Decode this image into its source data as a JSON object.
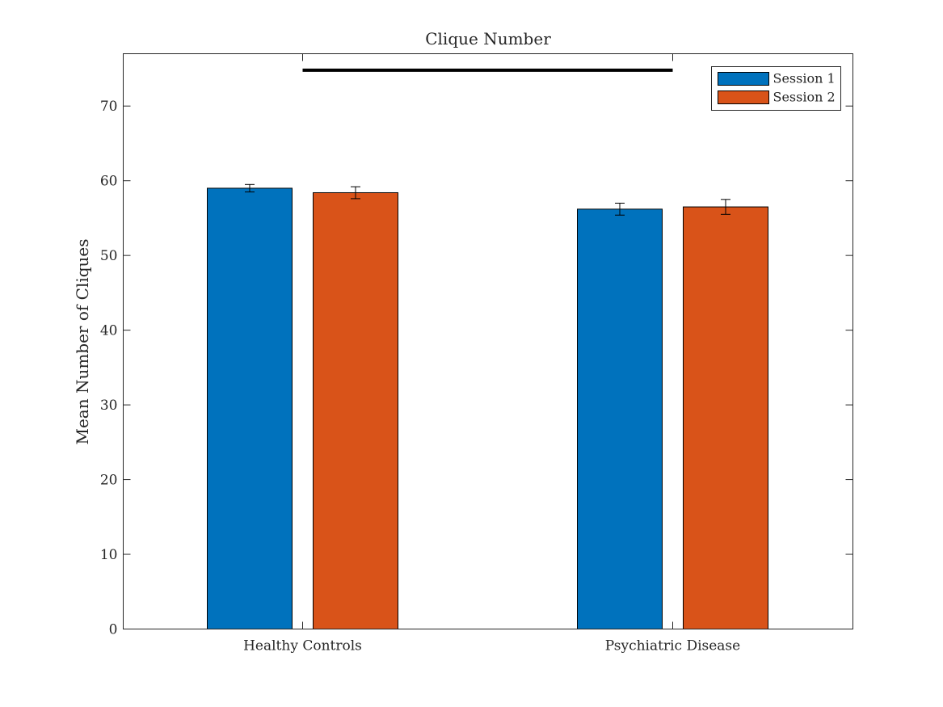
{
  "chart_data": {
    "type": "bar",
    "title": "Clique Number",
    "xlabel": "",
    "ylabel": "Mean Number of Cliques",
    "categories": [
      "Healthy Controls",
      "Psychiatric Disease"
    ],
    "series": [
      {
        "name": "Session 1",
        "color": "#0072BD",
        "values": [
          59.0,
          56.2
        ],
        "errors": [
          0.5,
          0.8
        ]
      },
      {
        "name": "Session 2",
        "color": "#D95319",
        "values": [
          58.4,
          56.5
        ],
        "errors": [
          0.8,
          1.0
        ]
      }
    ],
    "ylim": [
      0,
      77
    ],
    "yticks": [
      0,
      10,
      20,
      30,
      40,
      50,
      60,
      70
    ],
    "significance_bar": {
      "from_category": 0,
      "to_category": 1,
      "y": 74.8
    },
    "grid": false,
    "legend_position": "top-right"
  }
}
